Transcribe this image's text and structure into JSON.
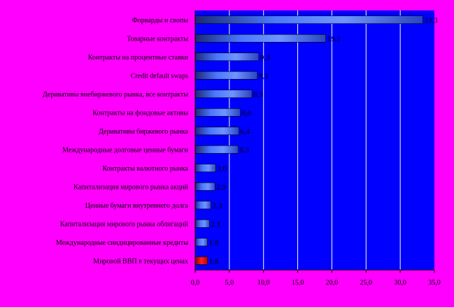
{
  "chart_data": {
    "type": "bar",
    "orientation": "horizontal",
    "categories": [
      "Форварды и свопы",
      "Товарные контракты",
      "Контракты на процентные ставки",
      "Credit default swaps",
      "Деривативы внебиржевого рынка, все контракты",
      "Контракты на фондовые активы",
      "Деривативы биржевого рынка",
      "Международные долговые ценные бумаги",
      "Контракты валютного рынка",
      "Капитализация мирового рынка акций",
      "Ценные бумаги внутреннего долга",
      "Капитализация мирового рынка облигаций",
      "Международные синдицированные кредиты",
      "Мировой ВВП в текущих ценах"
    ],
    "values": [
      33.3,
      19.1,
      9.3,
      9.1,
      8.3,
      6.6,
      6.4,
      6.3,
      3.0,
      2.9,
      2.3,
      2.1,
      1.8,
      1.8
    ],
    "value_labels": [
      "33,3",
      "19,1",
      "9,3",
      "9,1",
      "8,3",
      "6,6",
      "6,4",
      "6,3",
      "3,0",
      "2,9",
      "2,3",
      "2,1",
      "1,8",
      "1,8"
    ],
    "highlight_index": 13,
    "xlim": [
      0,
      35
    ],
    "xticks": [
      0,
      5,
      10,
      15,
      20,
      25,
      30,
      35
    ],
    "xtick_labels": [
      "0,0",
      "5,0",
      "10,0",
      "15,0",
      "20,0",
      "25,0",
      "30,0",
      "35,0"
    ],
    "grid": "vertical",
    "colors": {
      "background": "#ff00ff",
      "plot_area": "#0000ff",
      "gridline": "#ffffff",
      "bar_main": "#3f6dff",
      "bar_dark": "#1a2a78",
      "bar_light": "#6f95ff",
      "highlight_bar": "#ff0000",
      "highlight_dark": "#800000"
    },
    "title": "",
    "xlabel": "",
    "ylabel": ""
  }
}
